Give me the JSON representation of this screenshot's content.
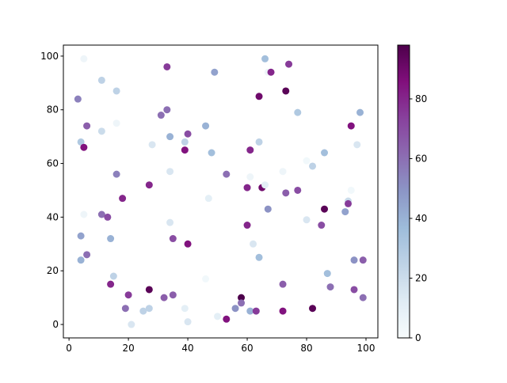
{
  "chart_data": {
    "type": "scatter",
    "x": [
      5,
      3,
      11,
      16,
      6,
      11,
      4,
      5,
      16,
      16,
      5,
      11,
      13,
      18,
      4,
      4,
      6,
      14,
      15,
      14,
      20,
      19,
      21,
      25,
      27,
      27,
      33,
      31,
      33,
      28,
      34,
      39,
      40,
      39,
      34,
      27,
      34,
      35,
      40,
      32,
      35,
      39,
      40,
      49,
      46,
      48,
      53,
      47,
      46,
      50,
      53,
      58,
      58,
      56,
      61,
      63,
      62,
      64,
      60,
      60,
      61,
      64,
      64,
      66,
      67,
      68,
      73,
      74,
      77,
      65,
      66,
      67,
      72,
      73,
      77,
      72,
      72,
      80,
      80,
      82,
      86,
      86,
      85,
      87,
      88,
      82,
      93,
      94,
      94,
      95,
      95,
      97,
      98,
      96,
      99,
      96,
      99,
      61
    ],
    "values": [
      99,
      84,
      91,
      87,
      74,
      72,
      68,
      66,
      75,
      56,
      41,
      41,
      40,
      47,
      33,
      24,
      26,
      32,
      18,
      15,
      11,
      6,
      0,
      5,
      6,
      13,
      96,
      78,
      80,
      67,
      70,
      68,
      71,
      65,
      57,
      52,
      38,
      32,
      30,
      10,
      11,
      6,
      1,
      94,
      74,
      64,
      56,
      47,
      17,
      3,
      2,
      10,
      8,
      6,
      5,
      5,
      30,
      25,
      37,
      51,
      65,
      68,
      85,
      99,
      94,
      94,
      87,
      97,
      79,
      51,
      52,
      43,
      57,
      49,
      50,
      15,
      5,
      39,
      61,
      59,
      64,
      43,
      37,
      19,
      14,
      6,
      42,
      46,
      45,
      50,
      74,
      67,
      79,
      24,
      24,
      13,
      10,
      55
    ],
    "color_values": [
      5,
      55,
      25,
      25,
      65,
      20,
      30,
      85,
      5,
      55,
      5,
      60,
      70,
      80,
      45,
      40,
      60,
      40,
      25,
      80,
      75,
      60,
      15,
      25,
      25,
      95,
      75,
      60,
      60,
      15,
      40,
      25,
      70,
      85,
      15,
      80,
      15,
      70,
      85,
      65,
      65,
      10,
      15,
      45,
      40,
      35,
      60,
      10,
      3,
      10,
      85,
      98,
      60,
      50,
      40,
      75,
      15,
      35,
      80,
      80,
      80,
      25,
      90,
      35,
      5,
      80,
      95,
      75,
      30,
      90,
      10,
      50,
      5,
      65,
      70,
      65,
      85,
      15,
      3,
      25,
      35,
      95,
      70,
      35,
      60,
      95,
      45,
      20,
      75,
      3,
      85,
      15,
      40,
      50,
      65,
      70,
      60,
      5
    ],
    "colormap": [
      "#f7fcfd",
      "#e0ecf4",
      "#bfd3e6",
      "#9ebcda",
      "#8c96c6",
      "#8c6bb1",
      "#88419d",
      "#810f7c",
      "#4d004b"
    ],
    "clim": [
      0,
      98
    ],
    "cticks": [
      0,
      20,
      40,
      60,
      80
    ],
    "xlim": [
      -1.9,
      104
    ],
    "ylim": [
      -5,
      104.1
    ],
    "xticks": [
      0,
      20,
      40,
      60,
      80,
      100
    ],
    "yticks": [
      0,
      20,
      40,
      60,
      80,
      100
    ]
  }
}
